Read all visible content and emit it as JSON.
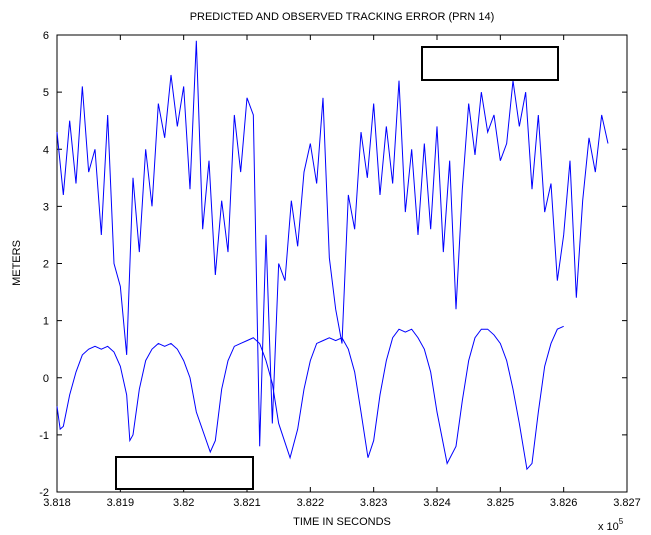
{
  "chart_data": {
    "type": "line",
    "title": "PREDICTED AND OBSERVED TRACKING ERROR (PRN 14)",
    "x_label": "TIME IN SECONDS",
    "y_label": "METERS",
    "x_multiplier": "x 10",
    "x_multiplier_exponent": "5",
    "xlim": [
      3.818,
      3.827
    ],
    "ylim": [
      -2,
      6
    ],
    "xticks": [
      3.818,
      3.819,
      3.82,
      3.821,
      3.822,
      3.823,
      3.824,
      3.825,
      3.826,
      3.827
    ],
    "yticks": [
      -2,
      -1,
      0,
      1,
      2,
      3,
      4,
      5,
      6
    ],
    "grid": false,
    "series": [
      {
        "color": "#0000ff",
        "x": [
          3.818,
          3.8181,
          3.8182,
          3.8183,
          3.8184,
          3.8185,
          3.8186,
          3.8187,
          3.8188,
          3.8189,
          3.819,
          3.8191,
          3.8192,
          3.8193,
          3.8194,
          3.8195,
          3.8196,
          3.8197,
          3.8198,
          3.8199,
          3.82,
          3.8201,
          3.8202,
          3.8203,
          3.8204,
          3.8205,
          3.8206,
          3.8207,
          3.8208,
          3.8209,
          3.821,
          3.8211,
          3.8212,
          3.8213,
          3.8214,
          3.8215,
          3.8216,
          3.8217,
          3.8218,
          3.8219,
          3.822,
          3.8221,
          3.8222,
          3.8223,
          3.8224,
          3.8225,
          3.8226,
          3.8227,
          3.8228,
          3.8229,
          3.823,
          3.8231,
          3.8232,
          3.8233,
          3.8234,
          3.8235,
          3.8236,
          3.8237,
          3.8238,
          3.8239,
          3.824,
          3.8241,
          3.8242,
          3.8243,
          3.8244,
          3.8245,
          3.8246,
          3.8247,
          3.8248,
          3.8249,
          3.825,
          3.8251,
          3.8252,
          3.8253,
          3.8254,
          3.8255,
          3.8256,
          3.8257,
          3.8258,
          3.8259,
          3.826,
          3.8261,
          3.8262,
          3.8263,
          3.8264,
          3.8265,
          3.8266,
          3.8267
        ],
        "values": [
          4.3,
          3.2,
          4.5,
          3.4,
          5.1,
          3.6,
          4.0,
          2.5,
          4.6,
          2.0,
          1.6,
          0.4,
          3.5,
          2.2,
          4.0,
          3.0,
          4.8,
          4.2,
          5.3,
          4.4,
          5.1,
          3.3,
          5.9,
          2.6,
          3.8,
          1.8,
          3.1,
          2.2,
          4.6,
          3.6,
          4.9,
          4.6,
          -1.2,
          2.5,
          -0.8,
          2.0,
          1.7,
          3.1,
          2.3,
          3.6,
          4.1,
          3.4,
          4.9,
          2.1,
          1.2,
          0.6,
          3.2,
          2.6,
          4.3,
          3.5,
          4.8,
          3.2,
          4.4,
          3.4,
          5.2,
          2.9,
          4.0,
          2.5,
          4.1,
          2.6,
          4.4,
          2.2,
          3.8,
          1.2,
          3.3,
          4.8,
          3.9,
          5.0,
          4.3,
          4.6,
          3.8,
          4.1,
          5.2,
          4.4,
          5.0,
          3.3,
          4.6,
          2.9,
          3.4,
          1.7,
          2.5,
          3.8,
          1.4,
          3.1,
          4.2,
          3.6,
          4.6,
          4.1
        ]
      },
      {
        "color": "#0000ff",
        "x": [
          3.818,
          3.81805,
          3.8181,
          3.8182,
          3.8183,
          3.8184,
          3.8185,
          3.8186,
          3.8187,
          3.8188,
          3.8189,
          3.819,
          3.8191,
          3.81915,
          3.8192,
          3.8193,
          3.8194,
          3.8195,
          3.8196,
          3.8197,
          3.8198,
          3.8199,
          3.82,
          3.8201,
          3.8202,
          3.82042,
          3.8205,
          3.8206,
          3.8207,
          3.8208,
          3.8209,
          3.821,
          3.8211,
          3.8212,
          3.8213,
          3.8214,
          3.8215,
          3.82168,
          3.8218,
          3.8219,
          3.822,
          3.8221,
          3.8222,
          3.8223,
          3.8224,
          3.8225,
          3.8226,
          3.8227,
          3.8228,
          3.82291,
          3.823,
          3.8231,
          3.8232,
          3.8233,
          3.8234,
          3.8235,
          3.8236,
          3.8237,
          3.8238,
          3.8239,
          3.824,
          3.82416,
          3.8243,
          3.8244,
          3.8245,
          3.8246,
          3.8247,
          3.8248,
          3.8249,
          3.825,
          3.8251,
          3.8252,
          3.8253,
          3.82542,
          3.8255,
          3.8256,
          3.8257,
          3.8258,
          3.8259,
          3.826
        ],
        "values": [
          -0.5,
          -0.9,
          -0.85,
          -0.3,
          0.1,
          0.4,
          0.5,
          0.55,
          0.5,
          0.55,
          0.45,
          0.2,
          -0.3,
          -1.1,
          -1.0,
          -0.2,
          0.3,
          0.5,
          0.6,
          0.55,
          0.6,
          0.5,
          0.3,
          0.0,
          -0.6,
          -1.3,
          -1.1,
          -0.2,
          0.3,
          0.55,
          0.6,
          0.65,
          0.7,
          0.6,
          0.3,
          -0.1,
          -0.8,
          -1.4,
          -0.9,
          -0.2,
          0.3,
          0.6,
          0.65,
          0.7,
          0.65,
          0.7,
          0.5,
          0.1,
          -0.6,
          -1.4,
          -1.1,
          -0.3,
          0.3,
          0.7,
          0.85,
          0.8,
          0.85,
          0.7,
          0.5,
          0.1,
          -0.6,
          -1.5,
          -1.2,
          -0.4,
          0.3,
          0.7,
          0.85,
          0.85,
          0.75,
          0.6,
          0.3,
          -0.2,
          -0.8,
          -1.6,
          -1.5,
          -0.6,
          0.2,
          0.6,
          0.85,
          0.9
        ]
      }
    ]
  }
}
